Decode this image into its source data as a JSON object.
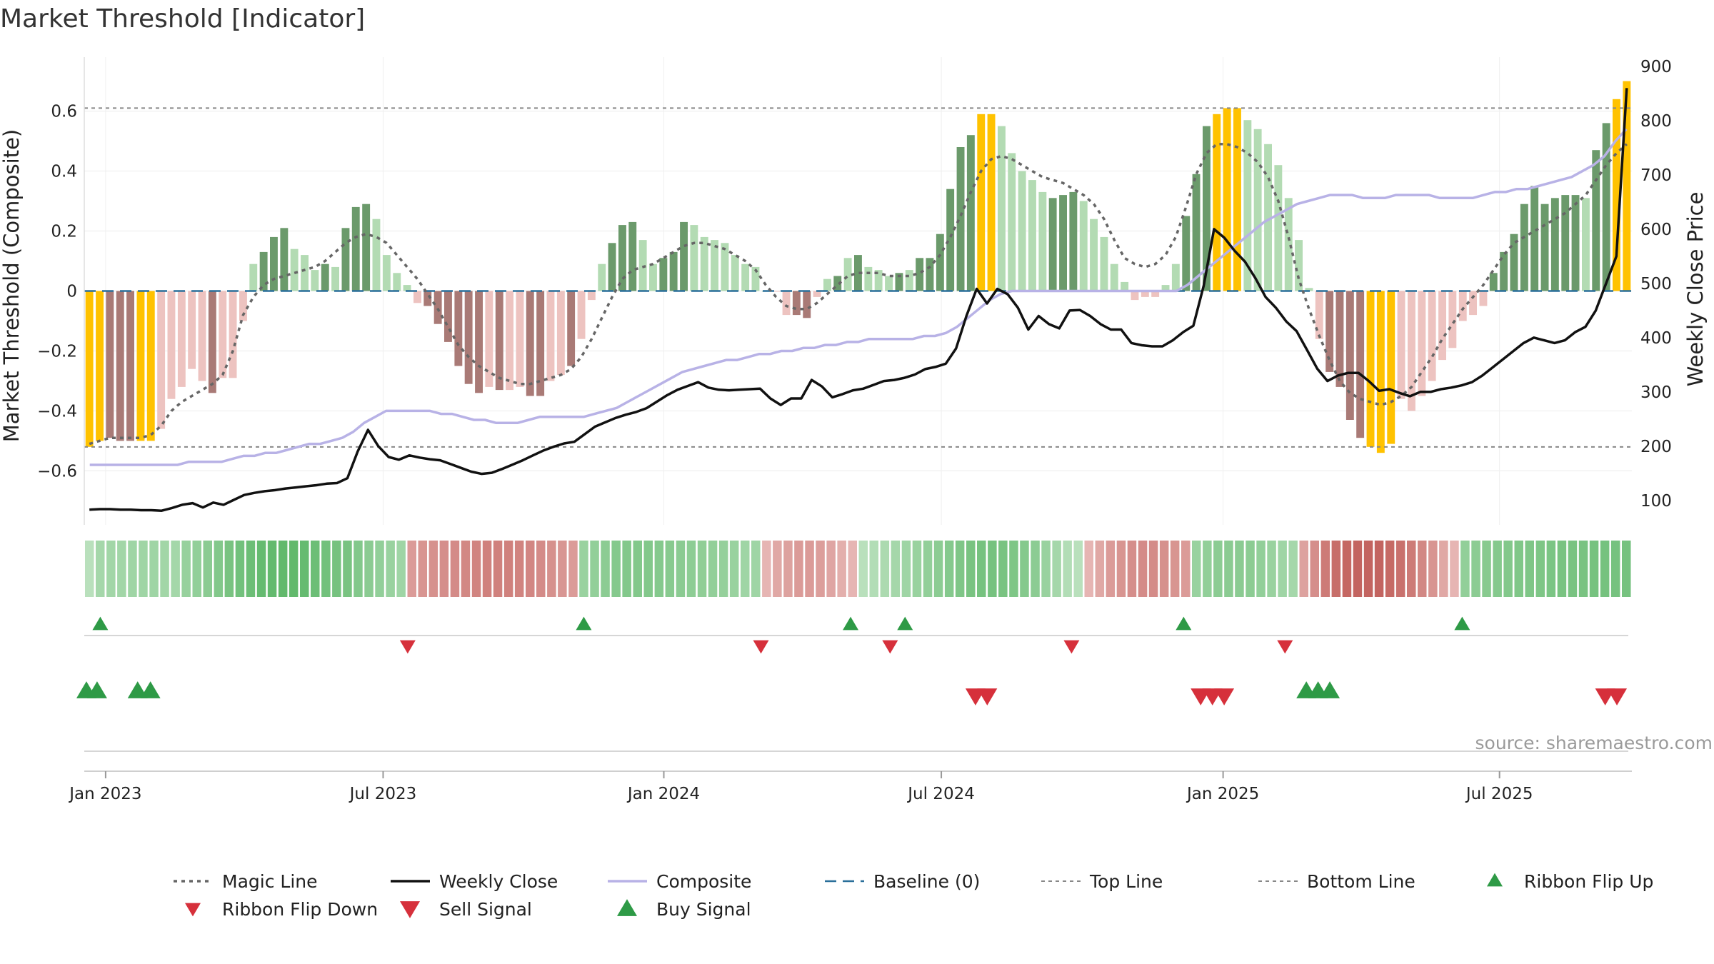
{
  "title": "Market Threshold [Indicator]",
  "source_text": "source: sharemaestro.com",
  "colors": {
    "bar_strong_pos": "#6b9a6b",
    "bar_weak_pos": "#b3dbb3",
    "bar_strong_neg": "#a97a76",
    "bar_weak_neg": "#edc3c0",
    "bar_extreme": "#ffc200",
    "magic_line": "#666666",
    "weekly_close": "#111111",
    "composite": "#b8b2e6",
    "baseline": "#2a6f9a",
    "threshold_line": "#888888",
    "ribbon_up": "#2e9a46",
    "ribbon_down": "#d6303b",
    "buy": "#2e9a46",
    "sell": "#d6303b"
  },
  "chart_data": {
    "type": "bar",
    "title": "Market Threshold [Indicator]",
    "ylabel": "Market Threshold (Composite)",
    "y2label": "Weekly Close Price",
    "ylim": [
      -0.78,
      0.78
    ],
    "y2lim": [
      55,
      917
    ],
    "yticks": [
      0.6,
      0.4,
      0.2,
      0,
      -0.2,
      -0.4,
      -0.6
    ],
    "ytick_labels": [
      "0.6",
      "0.4",
      "0.2",
      "0",
      "−0.2",
      "−0.4",
      "−0.6"
    ],
    "y2ticks": [
      100,
      200,
      300,
      400,
      500,
      600,
      700,
      800,
      900
    ],
    "y2tick_labels": [
      "100",
      "200",
      "300",
      "400",
      "500",
      "600",
      "700",
      "800",
      "900"
    ],
    "x_range_weeks": [
      0,
      145
    ],
    "xticks": [
      {
        "week": 2.0,
        "label": "Jan 2023"
      },
      {
        "week": 28.0,
        "label": "Jul 2023"
      },
      {
        "week": 54.3,
        "label": "Jan 2024"
      },
      {
        "week": 80.3,
        "label": "Jul 2024"
      },
      {
        "week": 106.7,
        "label": "Jan 2025"
      },
      {
        "week": 132.6,
        "label": "Jul 2025"
      }
    ],
    "top_line": 0.61,
    "bottom_line": -0.52,
    "baseline": 0,
    "composite_bars": [
      -0.52,
      -0.5,
      -0.49,
      -0.5,
      -0.5,
      -0.5,
      -0.5,
      -0.46,
      -0.36,
      -0.32,
      -0.26,
      -0.3,
      -0.34,
      -0.29,
      -0.29,
      -0.1,
      0.09,
      0.13,
      0.18,
      0.21,
      0.14,
      0.12,
      0.07,
      0.09,
      0.08,
      0.21,
      0.28,
      0.29,
      0.24,
      0.12,
      0.06,
      0.02,
      -0.04,
      -0.05,
      -0.11,
      -0.17,
      -0.25,
      -0.31,
      -0.34,
      -0.32,
      -0.33,
      -0.33,
      -0.32,
      -0.35,
      -0.35,
      -0.3,
      -0.28,
      -0.25,
      -0.16,
      -0.03,
      0.09,
      0.16,
      0.22,
      0.23,
      0.17,
      0.09,
      0.11,
      0.13,
      0.23,
      0.22,
      0.18,
      0.17,
      0.16,
      0.12,
      0.09,
      0.08,
      0.0,
      0.0,
      -0.08,
      -0.08,
      -0.09,
      -0.02,
      0.04,
      0.05,
      0.11,
      0.12,
      0.08,
      0.07,
      0.05,
      0.06,
      0.07,
      0.11,
      0.11,
      0.19,
      0.34,
      0.48,
      0.52,
      0.59,
      0.59,
      0.55,
      0.46,
      0.4,
      0.37,
      0.33,
      0.31,
      0.32,
      0.33,
      0.3,
      0.24,
      0.18,
      0.09,
      0.03,
      -0.03,
      -0.02,
      -0.02,
      0.02,
      0.09,
      0.25,
      0.39,
      0.55,
      0.59,
      0.61,
      0.61,
      0.57,
      0.54,
      0.49,
      0.42,
      0.31,
      0.17,
      0.01,
      -0.16,
      -0.27,
      -0.32,
      -0.43,
      -0.49,
      -0.52,
      -0.54,
      -0.51,
      -0.36,
      -0.4,
      -0.35,
      -0.3,
      -0.23,
      -0.19,
      -0.1,
      -0.08,
      -0.05,
      0.06,
      0.13,
      0.19,
      0.29,
      0.35,
      0.29,
      0.31,
      0.32,
      0.32,
      0.31,
      0.47,
      0.56,
      0.64,
      0.7
    ],
    "bar_classes": [
      "X",
      "X",
      "N",
      "N",
      "N",
      "X",
      "X",
      "n",
      "n",
      "n",
      "n",
      "n",
      "N",
      "n",
      "n",
      "n",
      "p",
      "P",
      "P",
      "P",
      "p",
      "p",
      "p",
      "P",
      "p",
      "P",
      "P",
      "P",
      "p",
      "p",
      "p",
      "p",
      "n",
      "N",
      "N",
      "N",
      "N",
      "N",
      "N",
      "n",
      "N",
      "n",
      "n",
      "N",
      "N",
      "n",
      "n",
      "N",
      "n",
      "n",
      "p",
      "P",
      "P",
      "P",
      "p",
      "p",
      "P",
      "P",
      "P",
      "p",
      "p",
      "p",
      "p",
      "p",
      "p",
      "p",
      "p",
      "n",
      "n",
      "N",
      "N",
      "n",
      "p",
      "P",
      "p",
      "P",
      "p",
      "p",
      "p",
      "P",
      "p",
      "P",
      "P",
      "P",
      "P",
      "P",
      "P",
      "X",
      "X",
      "p",
      "p",
      "p",
      "p",
      "p",
      "P",
      "P",
      "P",
      "p",
      "p",
      "p",
      "p",
      "p",
      "n",
      "n",
      "n",
      "p",
      "p",
      "P",
      "P",
      "P",
      "X",
      "X",
      "X",
      "p",
      "p",
      "p",
      "p",
      "p",
      "p",
      "p",
      "n",
      "N",
      "N",
      "N",
      "N",
      "X",
      "X",
      "X",
      "n",
      "n",
      "n",
      "n",
      "n",
      "n",
      "n",
      "n",
      "n",
      "P",
      "P",
      "P",
      "P",
      "P",
      "P",
      "P",
      "P",
      "P",
      "p",
      "P",
      "P",
      "X",
      "X"
    ],
    "magic_line": [
      -0.51,
      -0.5,
      -0.49,
      -0.49,
      -0.49,
      -0.49,
      -0.48,
      -0.45,
      -0.4,
      -0.37,
      -0.35,
      -0.33,
      -0.31,
      -0.28,
      -0.2,
      -0.08,
      -0.02,
      0.02,
      0.04,
      0.05,
      0.06,
      0.07,
      0.08,
      0.1,
      0.13,
      0.16,
      0.18,
      0.19,
      0.18,
      0.16,
      0.12,
      0.08,
      0.04,
      -0.01,
      -0.06,
      -0.12,
      -0.18,
      -0.22,
      -0.25,
      -0.27,
      -0.29,
      -0.3,
      -0.31,
      -0.31,
      -0.3,
      -0.29,
      -0.28,
      -0.26,
      -0.22,
      -0.16,
      -0.09,
      -0.02,
      0.04,
      0.07,
      0.08,
      0.09,
      0.11,
      0.13,
      0.15,
      0.16,
      0.16,
      0.15,
      0.14,
      0.12,
      0.1,
      0.07,
      0.02,
      -0.02,
      -0.05,
      -0.06,
      -0.06,
      -0.04,
      -0.01,
      0.02,
      0.05,
      0.06,
      0.06,
      0.06,
      0.05,
      0.05,
      0.05,
      0.06,
      0.08,
      0.12,
      0.18,
      0.25,
      0.33,
      0.4,
      0.44,
      0.45,
      0.44,
      0.42,
      0.4,
      0.38,
      0.37,
      0.36,
      0.34,
      0.32,
      0.29,
      0.24,
      0.17,
      0.11,
      0.09,
      0.08,
      0.09,
      0.12,
      0.18,
      0.28,
      0.39,
      0.46,
      0.49,
      0.49,
      0.48,
      0.46,
      0.43,
      0.38,
      0.3,
      0.18,
      0.04,
      -0.06,
      -0.15,
      -0.23,
      -0.3,
      -0.34,
      -0.36,
      -0.37,
      -0.38,
      -0.37,
      -0.35,
      -0.32,
      -0.27,
      -0.22,
      -0.16,
      -0.11,
      -0.06,
      -0.02,
      0.02,
      0.07,
      0.12,
      0.16,
      0.18,
      0.2,
      0.22,
      0.24,
      0.26,
      0.29,
      0.32,
      0.37,
      0.42,
      0.46,
      0.49
    ],
    "weekly_close": [
      83,
      84,
      84,
      83,
      83,
      82,
      82,
      81,
      86,
      92,
      95,
      87,
      96,
      92,
      101,
      110,
      114,
      117,
      119,
      122,
      124,
      126,
      128,
      131,
      132,
      141,
      190,
      230,
      200,
      180,
      175,
      183,
      179,
      176,
      174,
      167,
      160,
      153,
      149,
      151,
      158,
      166,
      174,
      183,
      192,
      199,
      205,
      208,
      222,
      236,
      244,
      252,
      258,
      263,
      270,
      282,
      294,
      304,
      311,
      318,
      308,
      304,
      303,
      304,
      305,
      306,
      288,
      276,
      288,
      288,
      322,
      310,
      290,
      296,
      303,
      306,
      313,
      320,
      322,
      326,
      332,
      342,
      346,
      352,
      380,
      440,
      490,
      463,
      490,
      480,
      455,
      415,
      440,
      425,
      417,
      450,
      451,
      440,
      425,
      415,
      415,
      390,
      386,
      384,
      384,
      395,
      410,
      422,
      496,
      600,
      584,
      560,
      540,
      510,
      475,
      455,
      430,
      412,
      378,
      343,
      320,
      330,
      335,
      335,
      320,
      302,
      305,
      298,
      292,
      300,
      300,
      305,
      308,
      312,
      318,
      330,
      345,
      360,
      375,
      390,
      400,
      395,
      390,
      395,
      410,
      420,
      450,
      500,
      550,
      860
    ],
    "composite_line": [
      -0.58,
      -0.58,
      -0.58,
      -0.58,
      -0.58,
      -0.58,
      -0.58,
      -0.58,
      -0.58,
      -0.57,
      -0.57,
      -0.57,
      -0.57,
      -0.56,
      -0.55,
      -0.55,
      -0.54,
      -0.54,
      -0.53,
      -0.52,
      -0.51,
      -0.51,
      -0.5,
      -0.49,
      -0.47,
      -0.44,
      -0.42,
      -0.4,
      -0.4,
      -0.4,
      -0.4,
      -0.4,
      -0.41,
      -0.41,
      -0.42,
      -0.43,
      -0.43,
      -0.44,
      -0.44,
      -0.44,
      -0.43,
      -0.42,
      -0.42,
      -0.42,
      -0.42,
      -0.42,
      -0.41,
      -0.4,
      -0.39,
      -0.37,
      -0.35,
      -0.33,
      -0.31,
      -0.29,
      -0.27,
      -0.26,
      -0.25,
      -0.24,
      -0.23,
      -0.23,
      -0.22,
      -0.21,
      -0.21,
      -0.2,
      -0.2,
      -0.19,
      -0.19,
      -0.18,
      -0.18,
      -0.17,
      -0.17,
      -0.16,
      -0.16,
      -0.16,
      -0.16,
      -0.16,
      -0.15,
      -0.15,
      -0.14,
      -0.12,
      -0.09,
      -0.06,
      -0.03,
      -0.01,
      0.0,
      0.0,
      0.0,
      0.0,
      0.0,
      0.0,
      0.0,
      0.0,
      0.0,
      0.0,
      0.0,
      0.0,
      0.0,
      0.0,
      0.0,
      0.0,
      0.02,
      0.05,
      0.08,
      0.11,
      0.14,
      0.17,
      0.2,
      0.23,
      0.25,
      0.27,
      0.29,
      0.3,
      0.31,
      0.32,
      0.32,
      0.32,
      0.31,
      0.31,
      0.31,
      0.32,
      0.32,
      0.32,
      0.32,
      0.31,
      0.31,
      0.31,
      0.31,
      0.32,
      0.33,
      0.33,
      0.34,
      0.34,
      0.35,
      0.36,
      0.37,
      0.38,
      0.4,
      0.42,
      0.45,
      0.5,
      0.54
    ],
    "ribbon": [
      0.3,
      0.45,
      0.48,
      0.48,
      0.5,
      0.5,
      0.5,
      0.48,
      0.46,
      0.56,
      0.6,
      0.66,
      0.72,
      0.8,
      0.85,
      0.9,
      0.95,
      0.97,
      0.98,
      0.98,
      0.95,
      0.9,
      0.85,
      0.82,
      0.8,
      0.72,
      0.66,
      0.6,
      0.55,
      0.5,
      -0.5,
      -0.55,
      -0.58,
      -0.6,
      -0.62,
      -0.65,
      -0.68,
      -0.7,
      -0.7,
      -0.7,
      -0.68,
      -0.66,
      -0.62,
      -0.58,
      -0.54,
      -0.5,
      0.55,
      0.6,
      0.65,
      0.7,
      0.72,
      0.72,
      0.72,
      0.7,
      0.68,
      0.66,
      0.64,
      0.62,
      0.6,
      0.58,
      0.55,
      0.5,
      0.5,
      -0.3,
      -0.4,
      -0.45,
      -0.5,
      -0.5,
      -0.48,
      -0.42,
      -0.35,
      -0.3,
      0.3,
      0.35,
      0.4,
      0.45,
      0.5,
      0.55,
      0.6,
      0.65,
      0.7,
      0.75,
      0.8,
      0.82,
      0.82,
      0.8,
      0.76,
      0.7,
      0.65,
      0.55,
      0.45,
      0.35,
      0.3,
      -0.3,
      -0.4,
      -0.5,
      -0.55,
      -0.6,
      -0.62,
      -0.62,
      -0.58,
      -0.55,
      -0.5,
      0.55,
      0.6,
      0.65,
      0.66,
      0.66,
      0.65,
      0.6,
      0.55,
      0.5,
      0.45,
      -0.45,
      -0.6,
      -0.75,
      -0.85,
      -0.9,
      -0.92,
      -0.92,
      -0.92,
      -0.88,
      -0.82,
      -0.75,
      -0.65,
      -0.55,
      -0.4,
      -0.3,
      0.6,
      0.65,
      0.68,
      0.7,
      0.72,
      0.74,
      0.75,
      0.76,
      0.78,
      0.8,
      0.8,
      0.8,
      0.82,
      0.82,
      0.82,
      0.82
    ],
    "ribbon_flip_up_weeks": [
      1.5,
      46.8,
      71.8,
      76.9,
      103.0,
      129.1
    ],
    "ribbon_flip_down_weeks": [
      30.3,
      63.4,
      75.5,
      92.5,
      112.5
    ],
    "buy_signal_weeks": [
      0.2,
      1.2,
      5.0,
      6.2,
      114.5,
      115.6,
      116.7
    ],
    "sell_signal_weeks": [
      83.5,
      84.6,
      104.6,
      105.7,
      106.8,
      142.5,
      143.6
    ],
    "legend": [
      {
        "key": "magic",
        "label": "Magic Line"
      },
      {
        "key": "close",
        "label": "Weekly Close"
      },
      {
        "key": "composite",
        "label": "Composite"
      },
      {
        "key": "baseline",
        "label": "Baseline (0)"
      },
      {
        "key": "top",
        "label": "Top Line"
      },
      {
        "key": "bottom",
        "label": "Bottom Line"
      },
      {
        "key": "flipup",
        "label": "Ribbon Flip Up"
      },
      {
        "key": "flipdown",
        "label": "Ribbon Flip Down"
      },
      {
        "key": "sell",
        "label": "Sell Signal"
      },
      {
        "key": "buy",
        "label": "Buy Signal"
      }
    ]
  }
}
